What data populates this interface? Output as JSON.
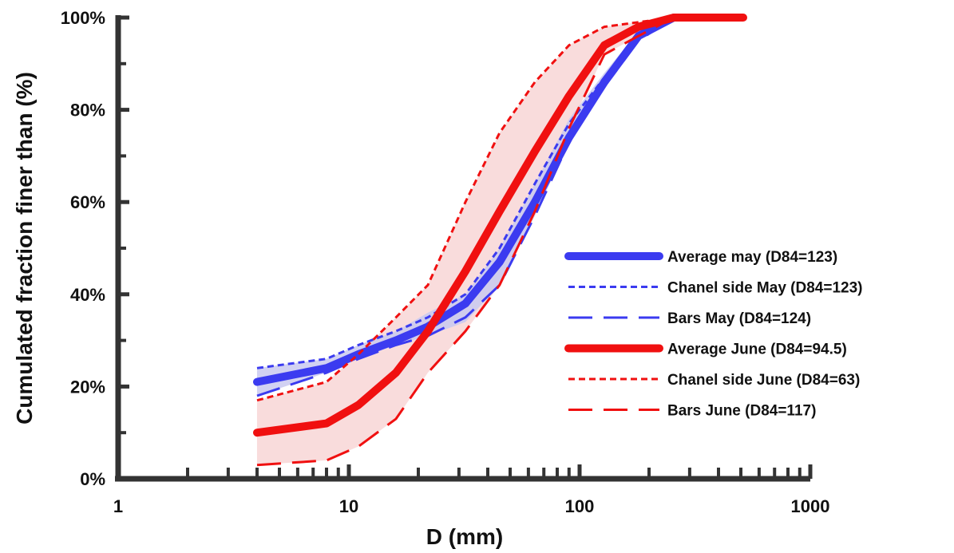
{
  "chart_data": {
    "type": "line",
    "title": "",
    "xlabel": "D (mm)",
    "ylabel": "Cumulated fraction finer than (%)",
    "xscale": "log",
    "xlim": [
      1,
      1000
    ],
    "ylim": [
      0,
      100
    ],
    "x_ticks": [
      {
        "value": 1,
        "label": "1"
      },
      {
        "value": 10,
        "label": "10"
      },
      {
        "value": 100,
        "label": "100"
      },
      {
        "value": 1000,
        "label": "1000"
      }
    ],
    "y_ticks": [
      {
        "value": 0,
        "label": "0%"
      },
      {
        "value": 20,
        "label": "20%"
      },
      {
        "value": 40,
        "label": "40%"
      },
      {
        "value": 60,
        "label": "60%"
      },
      {
        "value": 80,
        "label": "80%"
      },
      {
        "value": 100,
        "label": "100%"
      }
    ],
    "grid": false,
    "legend_position": "right",
    "colors": {
      "may": "#3b3bf0",
      "june": "#f01010",
      "may_band": "#c9c9f0",
      "june_band": "#f8d6d6",
      "axis": "#333333"
    },
    "bands": [
      {
        "group": "june",
        "x": [
          4,
          8,
          11,
          16,
          22,
          32,
          45,
          64,
          90,
          128,
          180,
          256,
          362,
          512
        ],
        "lower": [
          3,
          4,
          7,
          13,
          23,
          32,
          42,
          58,
          76,
          92,
          96,
          100,
          100,
          100
        ],
        "upper": [
          17,
          21,
          27,
          35,
          42,
          60,
          75,
          86,
          94,
          98,
          99,
          100,
          100,
          100
        ]
      },
      {
        "group": "may",
        "x": [
          4,
          8,
          11,
          16,
          22,
          32,
          45,
          64,
          90,
          128,
          180,
          256
        ],
        "lower": [
          18,
          23,
          26,
          29,
          31,
          34,
          42,
          57,
          73,
          85,
          95,
          100
        ],
        "upper": [
          24,
          26,
          29,
          32,
          36,
          40,
          50,
          64,
          78,
          88,
          97,
          100
        ]
      }
    ],
    "series": [
      {
        "name": "Average may (D84=123)",
        "group": "may",
        "style": "solid-thick",
        "x": [
          4,
          8,
          11,
          16,
          22,
          32,
          45,
          64,
          90,
          128,
          180,
          256
        ],
        "y": [
          21,
          24,
          27,
          30,
          33,
          38,
          47,
          60,
          74,
          86,
          96,
          100
        ]
      },
      {
        "name": "Chanel side May (D84=123)",
        "group": "may",
        "style": "short-dash",
        "x": [
          4,
          8,
          11,
          16,
          22,
          32,
          45,
          64,
          90,
          128,
          180,
          256
        ],
        "y": [
          24,
          26,
          29,
          32,
          35,
          40,
          50,
          64,
          77,
          87,
          96,
          100
        ]
      },
      {
        "name": "Bars May (D84=124)",
        "group": "may",
        "style": "long-dash",
        "x": [
          4,
          8,
          11,
          16,
          22,
          32,
          45,
          64,
          90,
          128,
          180,
          256
        ],
        "y": [
          18,
          23,
          26,
          29,
          31,
          35,
          42,
          57,
          73,
          85,
          95,
          100
        ]
      },
      {
        "name": "Average June (D84=94.5)",
        "group": "june",
        "style": "solid-thick",
        "x": [
          4,
          8,
          11,
          16,
          22,
          32,
          45,
          64,
          90,
          128,
          180,
          256,
          362,
          512
        ],
        "y": [
          10,
          12,
          16,
          23,
          32,
          45,
          58,
          71,
          83,
          94,
          98,
          100,
          100,
          100
        ]
      },
      {
        "name": "Chanel side June (D84=63)",
        "group": "june",
        "style": "short-dash",
        "x": [
          4,
          8,
          11,
          16,
          22,
          32,
          45,
          64,
          90,
          128,
          180,
          256,
          362,
          512
        ],
        "y": [
          17,
          21,
          27,
          35,
          42,
          60,
          75,
          86,
          94,
          98,
          99,
          100,
          100,
          100
        ]
      },
      {
        "name": "Bars June (D84=117)",
        "group": "june",
        "style": "long-dash",
        "x": [
          4,
          8,
          11,
          16,
          22,
          32,
          45,
          64,
          90,
          128,
          180,
          256,
          362,
          512
        ],
        "y": [
          3,
          4,
          7,
          13,
          23,
          32,
          42,
          58,
          76,
          92,
          96,
          100,
          100,
          100
        ]
      }
    ]
  }
}
